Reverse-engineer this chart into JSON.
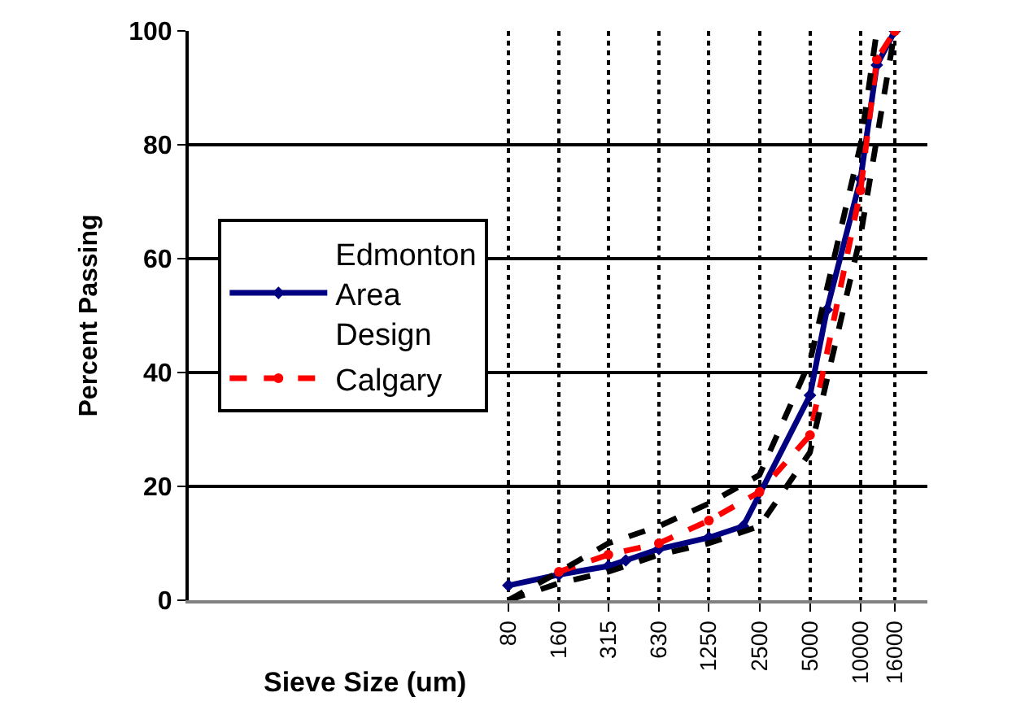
{
  "chart_data": {
    "type": "line",
    "xlabel": "Sieve Size (um)",
    "ylabel": "Percent Passing",
    "log": "x",
    "grid": true,
    "legend": "left",
    "xlim": [
      1,
      25000
    ],
    "xticks": [
      80,
      160,
      315,
      630,
      1250,
      2500,
      5000,
      10000,
      16000
    ],
    "ylim": [
      0,
      100
    ],
    "yticks": [
      0,
      20,
      40,
      60,
      80,
      100
    ],
    "series": [
      {
        "name": "Edmonton Area Design",
        "color": "#000080",
        "marker": "diamond",
        "line_style": "solid",
        "x": [
          80,
          160,
          315,
          400,
          630,
          1250,
          2000,
          5000,
          6300,
          10000,
          12500,
          16000
        ],
        "values": [
          2.6,
          4.5,
          6,
          7,
          9,
          11,
          13,
          36,
          51,
          74,
          94,
          100
        ]
      },
      {
        "name": "Calgary",
        "color": "#ff0000",
        "marker": "circle",
        "line_style": "dashed",
        "x": [
          160,
          315,
          630,
          1250,
          2500,
          5000,
          10000,
          12500,
          16000
        ],
        "values": [
          5,
          8,
          10,
          14,
          19,
          29,
          72,
          95,
          100
        ]
      },
      {
        "color": "#000000",
        "marker": "none",
        "line_style": "dashed",
        "x": [
          80,
          160,
          315,
          630,
          1250,
          2500,
          5000,
          10000,
          12500
        ],
        "values": [
          0,
          5,
          10,
          13,
          17,
          22,
          42,
          80,
          100
        ]
      },
      {
        "color": "#000000",
        "marker": "none",
        "line_style": "dashed",
        "x": [
          80,
          160,
          315,
          630,
          1250,
          2500,
          5000,
          10000,
          16000
        ],
        "values": [
          0,
          3,
          5,
          8,
          10,
          13,
          26,
          64,
          100
        ]
      }
    ]
  }
}
